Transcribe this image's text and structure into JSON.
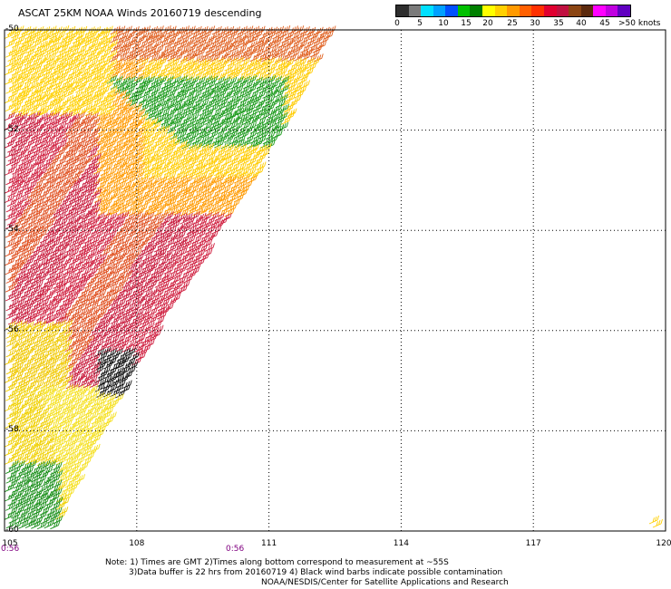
{
  "title": "ASCAT 25KM NOAA Winds 20160719 descending",
  "legend": {
    "colors": [
      "#2e2e2e",
      "#7a7a7a",
      "#00e0ff",
      "#00a0ff",
      "#0050ff",
      "#00c000",
      "#008000",
      "#ffff00",
      "#ffd000",
      "#ff9a00",
      "#ff6000",
      "#ff3000",
      "#e00030",
      "#c01040",
      "#8b4513",
      "#5c2a0e",
      "#ff00ff",
      "#c000e0",
      "#6000c0"
    ],
    "ticks": [
      "0",
      "5",
      "10",
      "15",
      "20",
      "25",
      "30",
      "35",
      "40",
      "45",
      ">50 knots"
    ]
  },
  "latitude_labels": [
    "-50",
    "-52",
    "-54",
    "-56",
    "-58",
    "-60"
  ],
  "longitude_labels": [
    "105",
    "108",
    "111",
    "114",
    "117",
    "120"
  ],
  "time_labels": [
    "0:56",
    "0:56"
  ],
  "notes": [
    "Note: 1) Times are GMT 2)Times along bottom correspond to measurement at ~55S",
    "3)Data buffer is 22 hrs from 20160719 4) Black wind barbs indicate possible contamination",
    "NOAA/NESDIS/Center for Satellite Applications and Research"
  ],
  "map": {
    "lon_range": [
      105,
      120
    ],
    "lat_range": [
      -60,
      -50
    ],
    "grid": true,
    "swath_color_bands": {
      "north_edge": "orange-red",
      "central": "red",
      "northeast_patch": "green",
      "upper_middle": "yellow",
      "southwest": "yellow",
      "southwest_corner": "green",
      "contaminated_patch": "black"
    }
  }
}
